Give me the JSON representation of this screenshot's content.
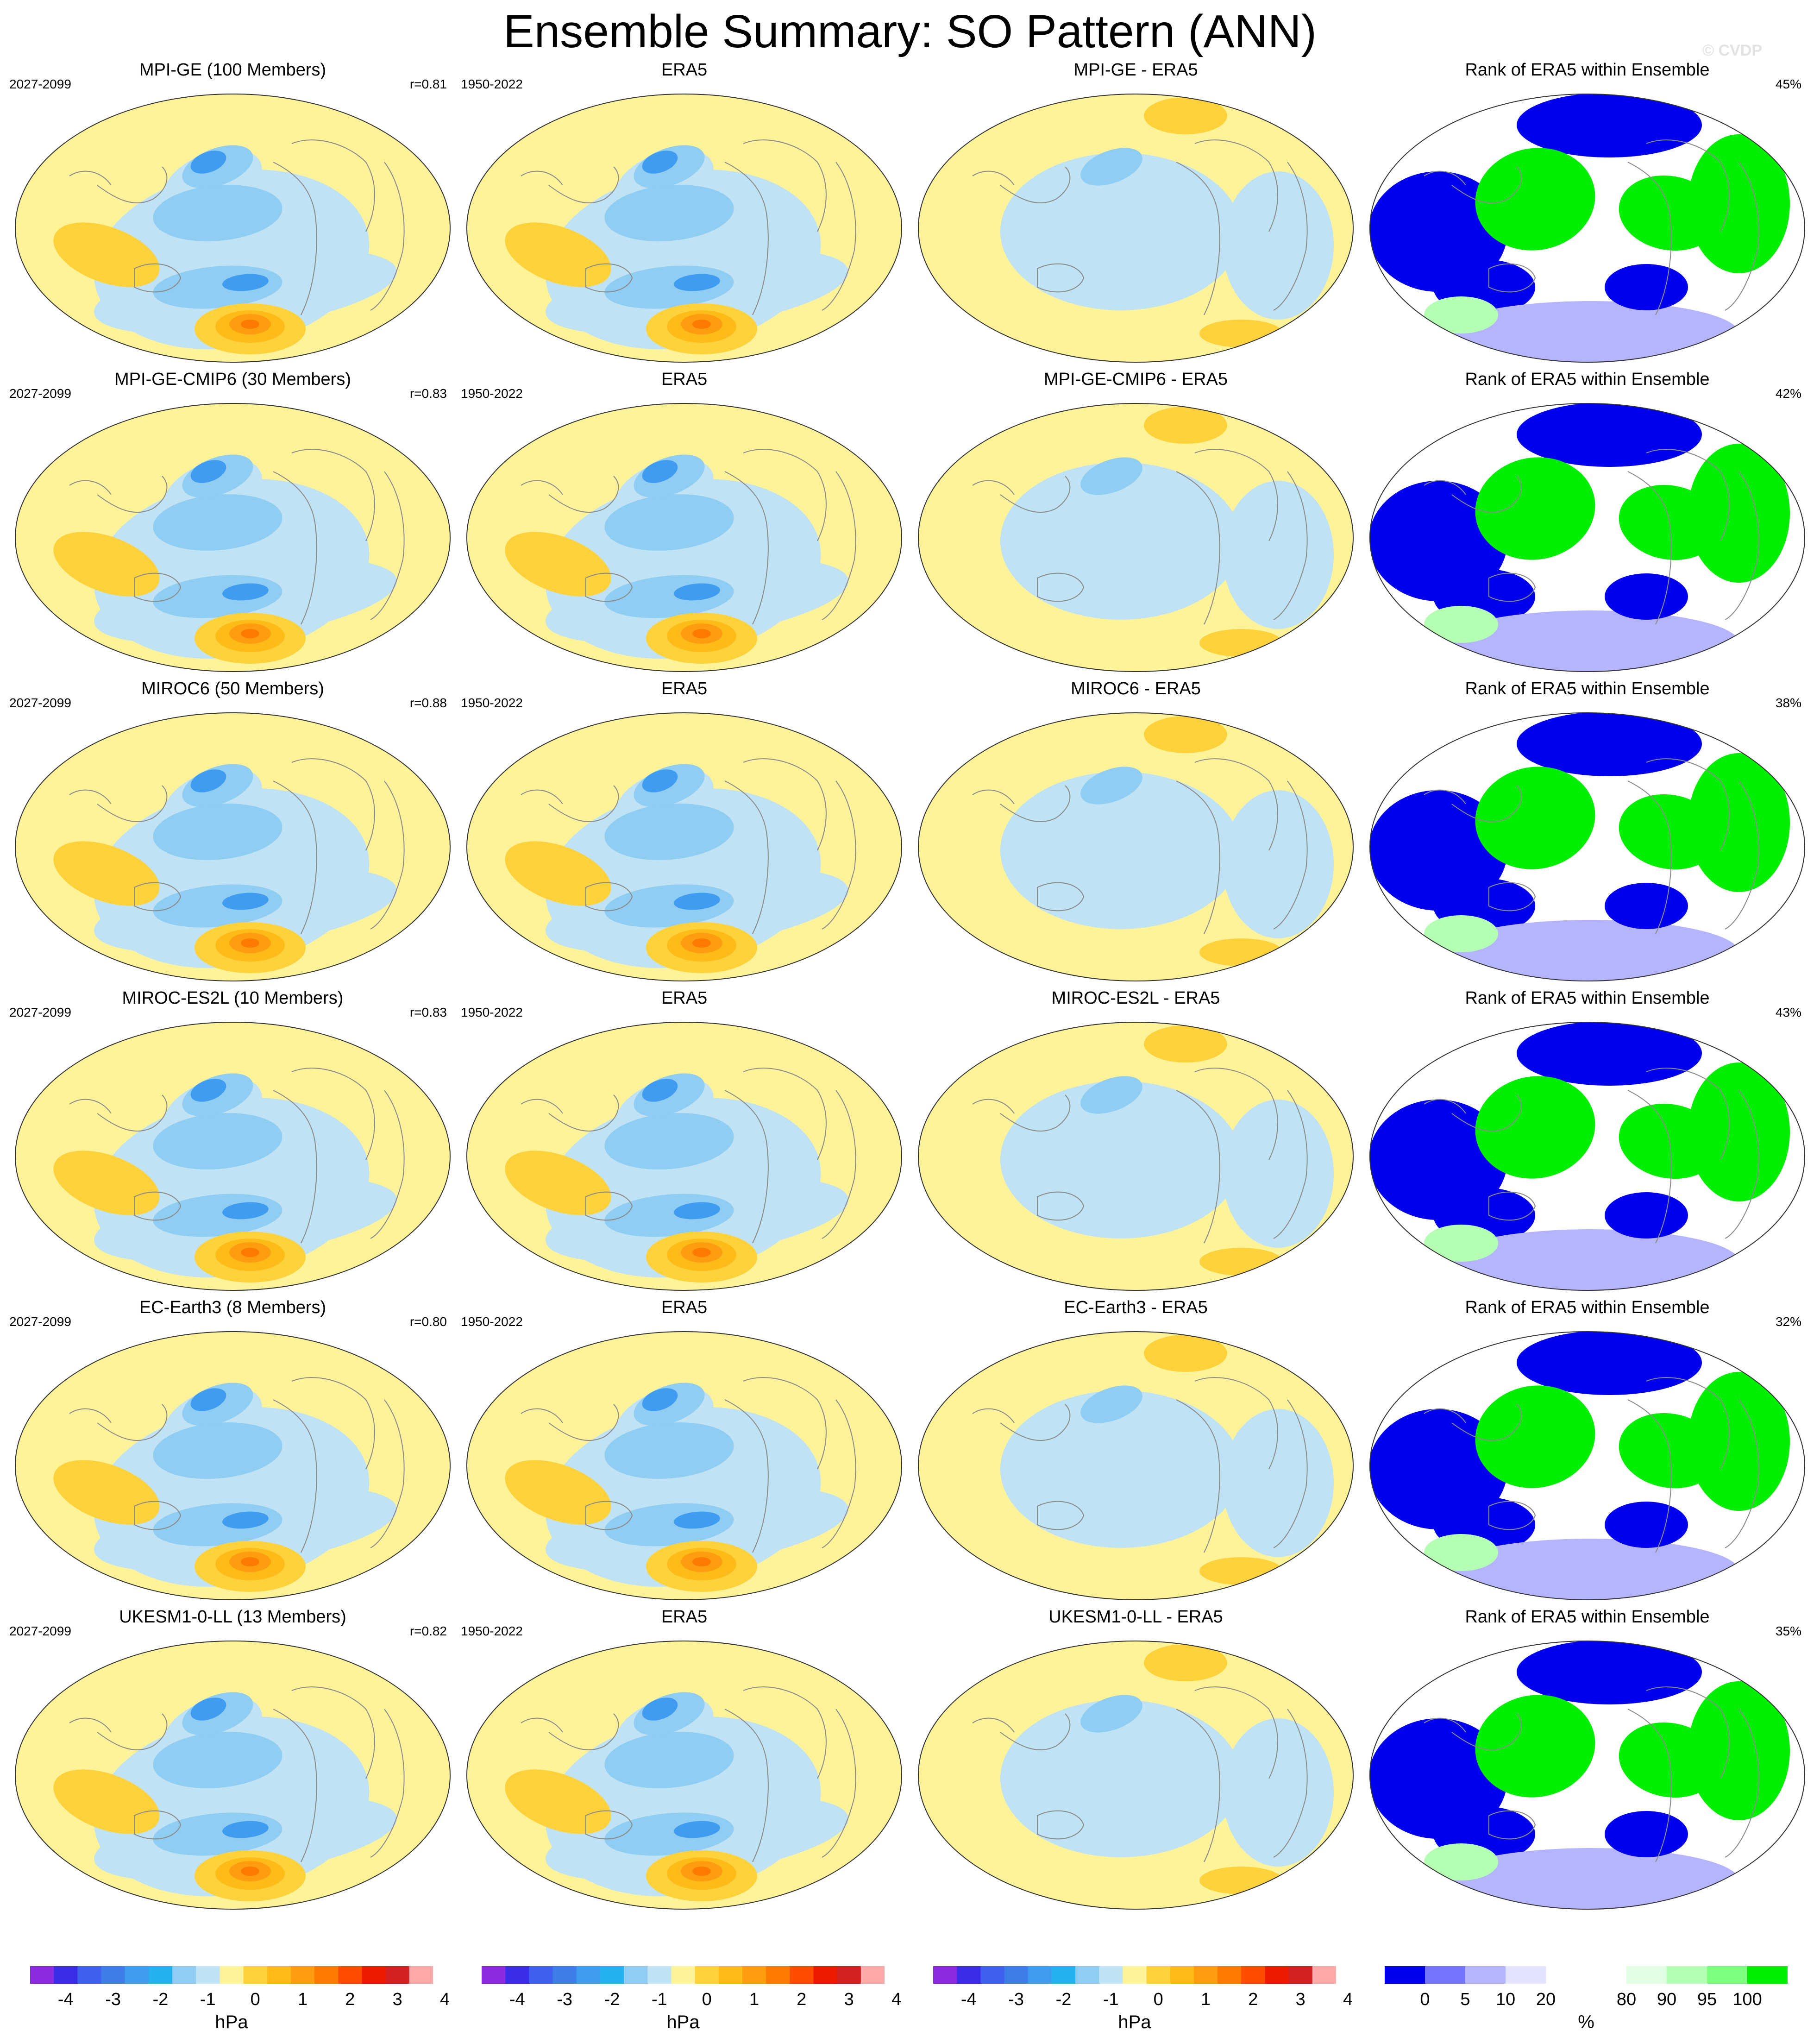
{
  "title": "Ensemble Summary: SO Pattern (ANN)",
  "watermark": "© CVDP",
  "rows": [
    {
      "model_title": "MPI-GE (100 Members)",
      "model_period": "2027-2099",
      "r_value": "r=0.81",
      "obs_title": "ERA5",
      "obs_period": "1950-2022",
      "diff_title": "MPI-GE - ERA5",
      "rank_title": "Rank of ERA5 within Ensemble",
      "rank_pct": "45%"
    },
    {
      "model_title": "MPI-GE-CMIP6 (30 Members)",
      "model_period": "2027-2099",
      "r_value": "r=0.83",
      "obs_title": "ERA5",
      "obs_period": "1950-2022",
      "diff_title": "MPI-GE-CMIP6 - ERA5",
      "rank_title": "Rank of ERA5 within Ensemble",
      "rank_pct": "42%"
    },
    {
      "model_title": "MIROC6 (50 Members)",
      "model_period": "2027-2099",
      "r_value": "r=0.88",
      "obs_title": "ERA5",
      "obs_period": "1950-2022",
      "diff_title": "MIROC6 - ERA5",
      "rank_title": "Rank of ERA5 within Ensemble",
      "rank_pct": "38%"
    },
    {
      "model_title": "MIROC-ES2L (10 Members)",
      "model_period": "2027-2099",
      "r_value": "r=0.83",
      "obs_title": "ERA5",
      "obs_period": "1950-2022",
      "diff_title": "MIROC-ES2L - ERA5",
      "rank_title": "Rank of ERA5 within Ensemble",
      "rank_pct": "43%"
    },
    {
      "model_title": "EC-Earth3 (8 Members)",
      "model_period": "2027-2099",
      "r_value": "r=0.80",
      "obs_title": "ERA5",
      "obs_period": "1950-2022",
      "diff_title": "EC-Earth3 - ERA5",
      "rank_title": "Rank of ERA5 within Ensemble",
      "rank_pct": "32%"
    },
    {
      "model_title": "UKESM1-0-LL (13 Members)",
      "model_period": "2027-2099",
      "r_value": "r=0.82",
      "obs_title": "ERA5",
      "obs_period": "1950-2022",
      "diff_title": "UKESM1-0-LL - ERA5",
      "rank_title": "Rank of ERA5 within Ensemble",
      "rank_pct": "35%"
    }
  ],
  "colorbars": {
    "hpa": {
      "unit": "hPa",
      "colors": [
        "#8b2be2",
        "#3b2ce8",
        "#4060f0",
        "#3d7de8",
        "#3f9cf0",
        "#22b2f2",
        "#8fcdf2",
        "#bfe2f4",
        "#fff39a",
        "#ffd23c",
        "#ffbc18",
        "#ff9c10",
        "#ff7a00",
        "#ff4d00",
        "#ee1a00",
        "#d42222",
        "#ffaaaa"
      ],
      "tick_labels": [
        "-4",
        "-3",
        "-2",
        "-1",
        "0",
        "1",
        "2",
        "3",
        "4"
      ]
    },
    "rank": {
      "unit": "%",
      "colors": [
        "#0000ee",
        "#7373ff",
        "#b4b4ff",
        "#e3e3ff",
        "#ffffff",
        "#ffffff",
        "#e3ffe3",
        "#b4ffb4",
        "#7cff7c",
        "#00ee00"
      ],
      "tick_labels": [
        "0",
        "5",
        "10",
        "20",
        "80",
        "90",
        "95",
        "100"
      ]
    }
  },
  "colors": {
    "land_outline": "#8a8a8a",
    "map_border": "#333333",
    "positive_light": "#fff39a",
    "negative_light": "#bfe2f4"
  }
}
